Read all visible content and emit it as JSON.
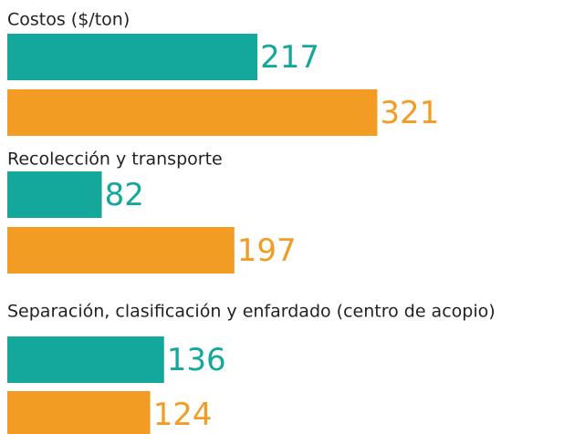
{
  "chart_data": {
    "type": "bar",
    "orientation": "horizontal",
    "categories": [
      "Costos ($/ton)",
      "Recolección y transporte",
      "Separación, clasificación y enfardado (centro de acopio)"
    ],
    "series": [
      {
        "color": "#14a89d",
        "values": [
          217,
          82,
          136
        ]
      },
      {
        "color": "#f39c23",
        "values": [
          321,
          197,
          124
        ]
      }
    ]
  }
}
